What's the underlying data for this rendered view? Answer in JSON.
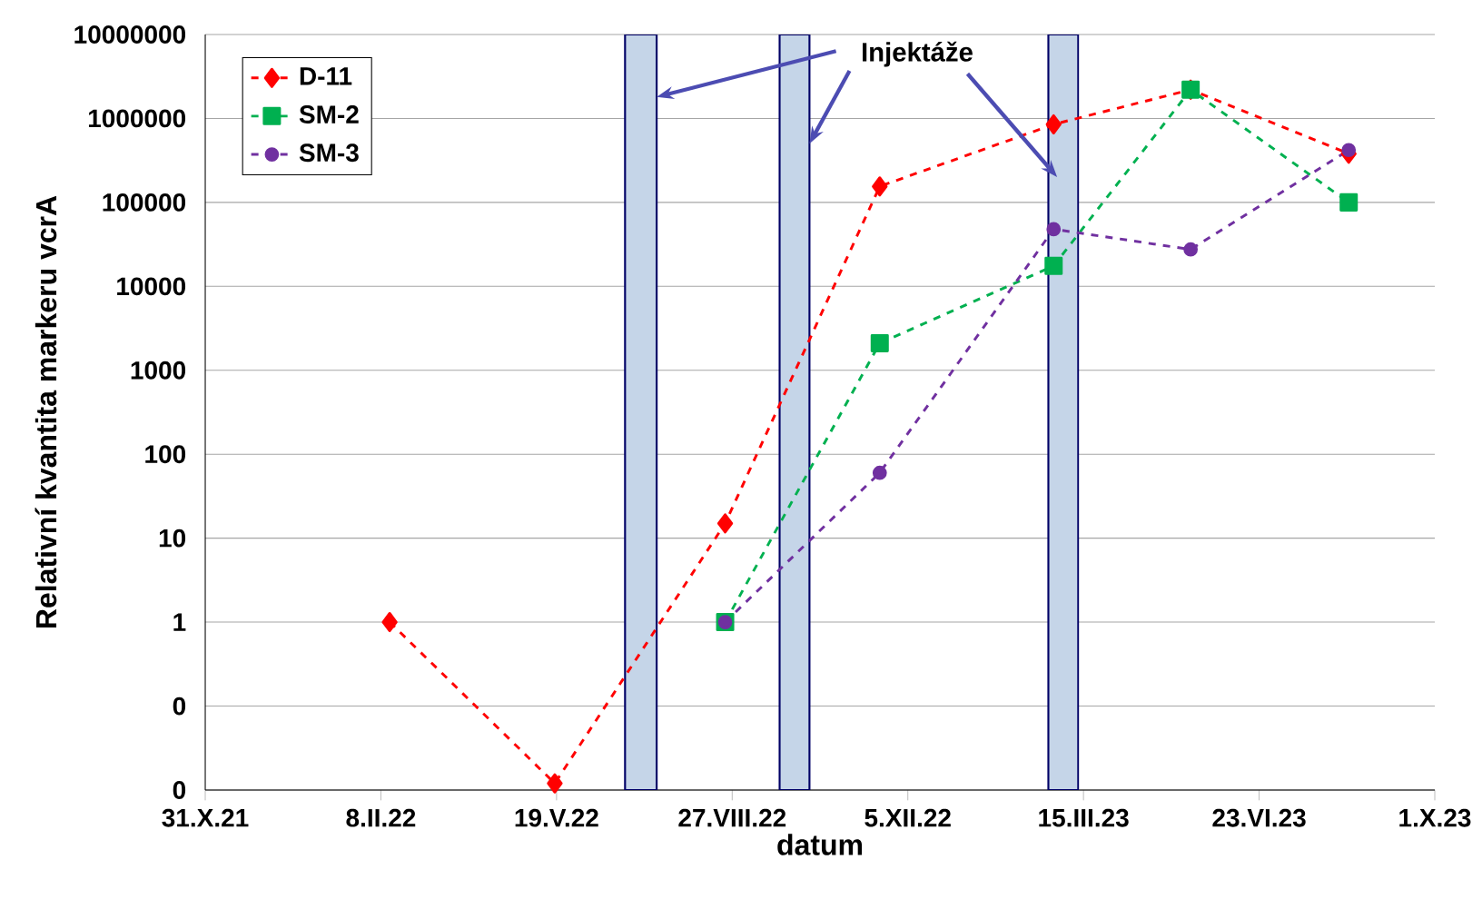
{
  "chart_data": {
    "type": "line",
    "xlabel": "datum",
    "ylabel": "Relativní kvantita markeru vcrA",
    "log": "y",
    "grid": "y",
    "legend": "top left",
    "line_style": "dashed",
    "xlim": [
      "2021-10-31",
      "2023-10-01"
    ],
    "xticks": [
      {
        "value": "2021-10-31",
        "label": "31.X.21"
      },
      {
        "value": "2022-02-08",
        "label": "8.II.22"
      },
      {
        "value": "2022-05-19",
        "label": "19.V.22"
      },
      {
        "value": "2022-08-27",
        "label": "27.VIII.22"
      },
      {
        "value": "2022-12-05",
        "label": "5.XII.22"
      },
      {
        "value": "2023-03-15",
        "label": "15.III.23"
      },
      {
        "value": "2023-06-23",
        "label": "23.VI.23"
      },
      {
        "value": "2023-10-01",
        "label": "1.X.23"
      }
    ],
    "ylim": [
      0.01,
      10000000
    ],
    "yticks": [
      {
        "value": 0.01,
        "label": "0"
      },
      {
        "value": 0.1,
        "label": "0"
      },
      1,
      10,
      100,
      1000,
      10000,
      100000,
      1000000,
      10000000
    ],
    "series": [
      {
        "name": "D-11",
        "color": "#ff0000",
        "marker": "diamond",
        "x": [
          "2022-02-13",
          "2022-05-18",
          "2022-08-23",
          "2022-11-19",
          "2023-02-26",
          "2023-05-15",
          "2023-08-13"
        ],
        "values": [
          1,
          0.012,
          15,
          155000,
          850000,
          2200000,
          380000
        ]
      },
      {
        "name": "SM-2",
        "color": "#00b050",
        "marker": "square",
        "x": [
          "2022-08-23",
          "2022-11-19",
          "2023-02-26",
          "2023-05-15",
          "2023-08-13"
        ],
        "values": [
          1,
          2100,
          17500,
          2200000,
          100000
        ]
      },
      {
        "name": "SM-3",
        "color": "#7030a0",
        "marker": "circle",
        "x": [
          "2022-08-23",
          "2022-11-19",
          "2023-02-26",
          "2023-05-15",
          "2023-08-13"
        ],
        "values": [
          1,
          60,
          48000,
          27500,
          420000
        ]
      }
    ],
    "bands": [
      {
        "axis": "x",
        "from": "2022-06-27",
        "to": "2022-07-15",
        "color": "#c5d5e8"
      },
      {
        "axis": "x",
        "from": "2022-09-23",
        "to": "2022-10-10",
        "color": "#c5d5e8"
      },
      {
        "axis": "x",
        "from": "2023-02-23",
        "to": "2023-03-12",
        "color": "#c5d5e8"
      }
    ],
    "annotations": [
      {
        "text": "Injektáže",
        "x": "2022-10-10",
        "y": 500000
      }
    ]
  }
}
